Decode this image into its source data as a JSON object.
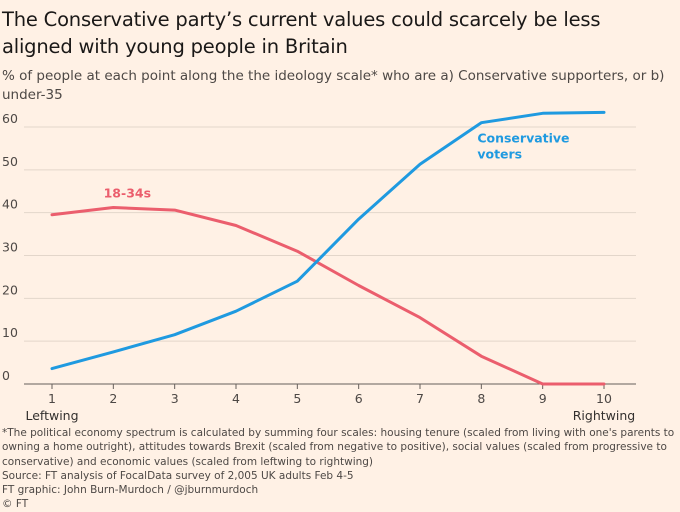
{
  "header": {
    "title": "The Conservative party’s current values could scarcely be less aligned with young people in Britain",
    "subtitle": "% of people at each point along the the ideology scale* who are a) Conservative supporters, or b) under-35"
  },
  "chart_data": {
    "type": "line",
    "x": [
      1,
      2,
      3,
      4,
      5,
      6,
      7,
      8,
      9,
      10
    ],
    "xlim": [
      1,
      10
    ],
    "ylim": [
      0,
      60
    ],
    "yticks": [
      0,
      10,
      20,
      30,
      40,
      50,
      60
    ],
    "xticks": [
      "1",
      "2",
      "3",
      "4",
      "5",
      "6",
      "7",
      "8",
      "9",
      "10"
    ],
    "x_end_labels": {
      "left": "Leftwing",
      "right": "Rightwing"
    },
    "grid": "horizontal",
    "series": [
      {
        "name": "18-34s",
        "color": "#eb5e6d",
        "values": [
          39.5,
          41.2,
          40.6,
          37.0,
          31.0,
          23.0,
          15.5,
          6.5,
          0,
          0
        ]
      },
      {
        "name": "Conservative voters",
        "label_lines": [
          "Conservative",
          "voters"
        ],
        "color": "#1f9ae0",
        "values": [
          3.6,
          7.5,
          11.5,
          17.0,
          24.0,
          38.5,
          51.3,
          61.0,
          63.2,
          63.4
        ]
      }
    ]
  },
  "notes": {
    "footnote": "*The political economy spectrum is calculated by summing four scales: housing tenure (scaled from living with one's parents to owning a home outright), attitudes towards Brexit (scaled from negative to positive), social values (scaled from progressive to conservative) and economic values (scaled from leftwing to rightwing)",
    "source": "Source: FT analysis of FocalData survey of 2,005 UK adults Feb 4-5",
    "credit": "FT graphic: John Burn-Murdoch / @jburnmurdoch",
    "copyright": "© FT"
  }
}
